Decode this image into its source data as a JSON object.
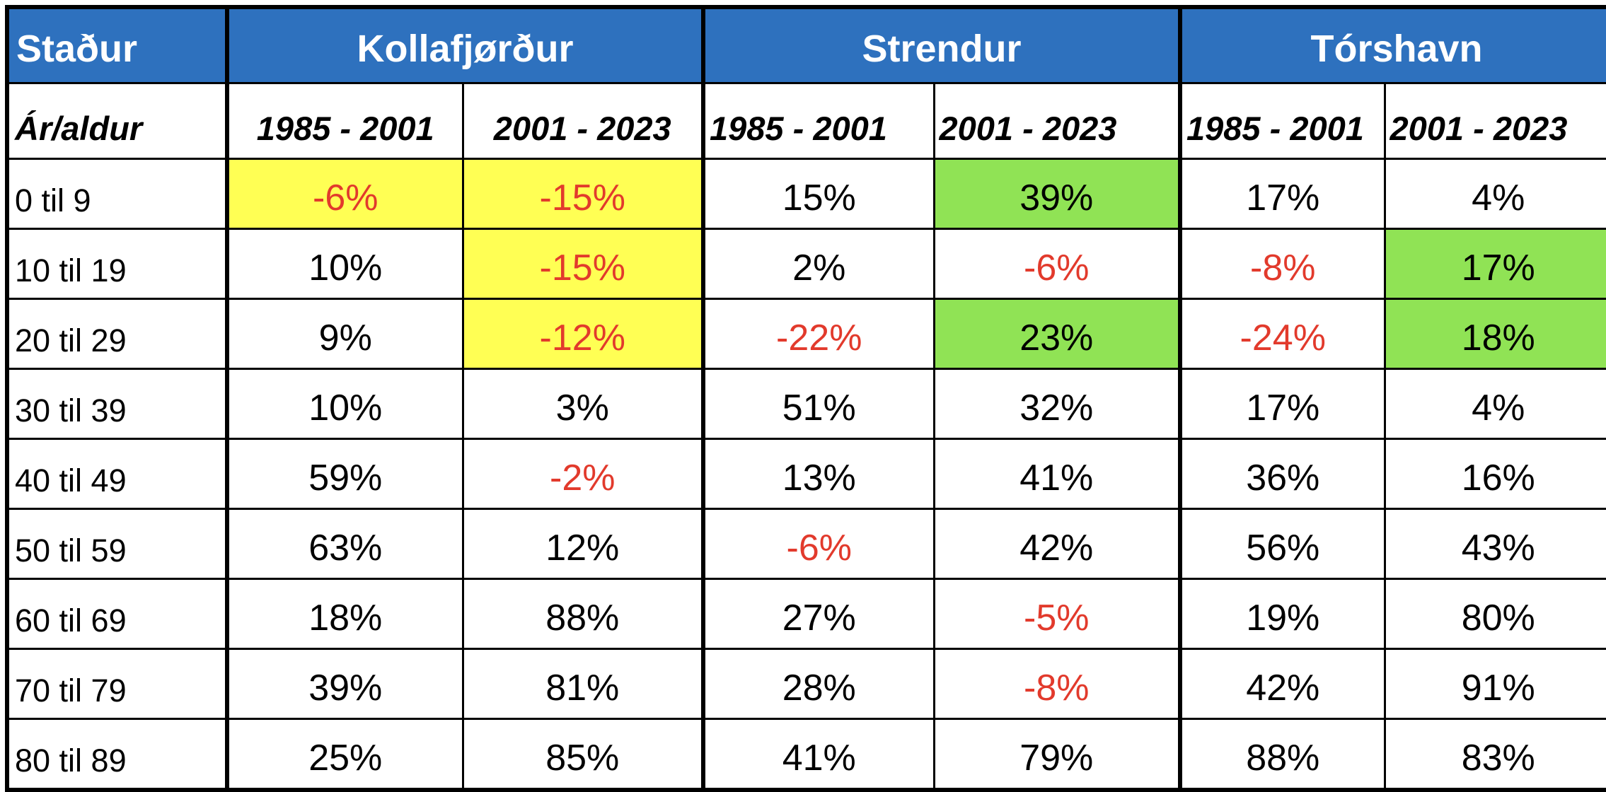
{
  "colors": {
    "header-blue": "#2E71BE",
    "highlight-yellow": "#FFFF54",
    "highlight-green": "#90E355",
    "negative-red": "#E23A2C",
    "grid-black": "#000000",
    "header-text-white": "#FFFFFF"
  },
  "chart_data": {
    "type": "table",
    "corner_header": "Staður",
    "row_axis_label": "Ár/aldur",
    "column_groups": [
      "Kollafjørður",
      "Strendur",
      "Tórshavn"
    ],
    "period_columns": [
      "1985 - 2001",
      "2001 - 2023",
      "1985 - 2001",
      "2001 - 2023",
      "1985 - 2001",
      "2001 - 2023"
    ],
    "row_labels": [
      "0 til 9",
      "10 til 19",
      "20 til 29",
      "30 til 39",
      "40 til 49",
      "50 til 59",
      "60 til 69",
      "70 til 79",
      "80 til 89"
    ],
    "values_pct": [
      [
        -6,
        -15,
        15,
        39,
        17,
        4
      ],
      [
        10,
        -15,
        2,
        -6,
        -8,
        17
      ],
      [
        9,
        -12,
        -22,
        23,
        -24,
        18
      ],
      [
        10,
        3,
        51,
        32,
        17,
        4
      ],
      [
        59,
        -2,
        13,
        41,
        36,
        16
      ],
      [
        63,
        12,
        -6,
        42,
        56,
        43
      ],
      [
        18,
        88,
        27,
        -5,
        19,
        80
      ],
      [
        39,
        81,
        28,
        -8,
        42,
        91
      ],
      [
        25,
        85,
        41,
        79,
        88,
        83
      ]
    ],
    "cell_highlights": [
      [
        "yellow",
        "yellow",
        null,
        "green",
        null,
        null
      ],
      [
        null,
        "yellow",
        null,
        null,
        null,
        "green"
      ],
      [
        null,
        "yellow",
        null,
        "green",
        null,
        "green"
      ],
      [
        null,
        null,
        null,
        null,
        null,
        null
      ],
      [
        null,
        null,
        null,
        null,
        null,
        null
      ],
      [
        null,
        null,
        null,
        null,
        null,
        null
      ],
      [
        null,
        null,
        null,
        null,
        null,
        null
      ],
      [
        null,
        null,
        null,
        null,
        null,
        null
      ],
      [
        null,
        null,
        null,
        null,
        null,
        null
      ]
    ],
    "value_suffix": "%",
    "notes": "negative values shown in red text"
  }
}
